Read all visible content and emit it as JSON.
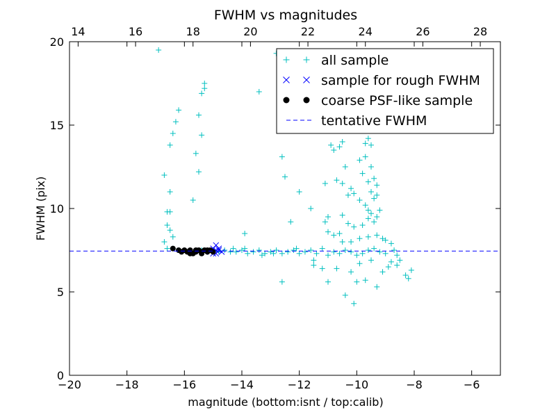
{
  "chart_data": {
    "type": "scatter",
    "title": "FWHM vs magnitudes",
    "xlabel": "magnitude (bottom:isnt / top:calib)",
    "ylabel": "FWHM (pix)",
    "xlim": [
      -20,
      -5
    ],
    "ylim": [
      0,
      20
    ],
    "x_ticks": [
      -20,
      -18,
      -16,
      -14,
      -12,
      -10,
      -8,
      -6
    ],
    "x_tick_labels": [
      "−20",
      "−18",
      "−16",
      "−14",
      "−12",
      "−10",
      "−8",
      "−6"
    ],
    "y_ticks": [
      0,
      5,
      10,
      15,
      20
    ],
    "y_tick_labels": [
      "0",
      "5",
      "10",
      "15",
      "20"
    ],
    "top_axis": {
      "offset": 33.7,
      "ticks": [
        14,
        16,
        18,
        20,
        22,
        24,
        26,
        28
      ],
      "tick_labels": [
        "14",
        "16",
        "18",
        "20",
        "22",
        "24",
        "26",
        "28"
      ]
    },
    "legend_position": "upper-right",
    "series": [
      {
        "name": "all sample",
        "marker": "+",
        "color": "#00bfbf",
        "points": [
          [
            -16.9,
            19.5
          ],
          [
            -16.2,
            15.9
          ],
          [
            -16.3,
            15.2
          ],
          [
            -16.4,
            14.5
          ],
          [
            -16.5,
            13.8
          ],
          [
            -15.3,
            17.5
          ],
          [
            -15.3,
            17.2
          ],
          [
            -15.4,
            16.9
          ],
          [
            -15.5,
            15.6
          ],
          [
            -15.4,
            14.4
          ],
          [
            -15.6,
            13.3
          ],
          [
            -15.5,
            12.2
          ],
          [
            -16.7,
            12.0
          ],
          [
            -16.5,
            11.0
          ],
          [
            -15.7,
            10.5
          ],
          [
            -16.6,
            9.8
          ],
          [
            -16.5,
            9.8
          ],
          [
            -16.6,
            9.0
          ],
          [
            -16.5,
            8.7
          ],
          [
            -16.4,
            8.3
          ],
          [
            -16.7,
            8.0
          ],
          [
            -13.4,
            17.0
          ],
          [
            -12.8,
            19.3
          ],
          [
            -12.6,
            13.1
          ],
          [
            -12.5,
            11.9
          ],
          [
            -12.3,
            9.2
          ],
          [
            -12.0,
            11.0
          ],
          [
            -11.6,
            10.0
          ],
          [
            -11.1,
            11.5
          ],
          [
            -13.9,
            8.5
          ],
          [
            -12.6,
            5.6
          ],
          [
            -10.9,
            13.8
          ],
          [
            -10.8,
            13.5
          ],
          [
            -10.5,
            14.0
          ],
          [
            -10.6,
            13.7
          ],
          [
            -10.4,
            12.5
          ],
          [
            -10.2,
            11.2
          ],
          [
            -10.7,
            11.7
          ],
          [
            -10.5,
            11.5
          ],
          [
            -10.3,
            10.8
          ],
          [
            -9.9,
            10.5
          ],
          [
            -10.1,
            10.9
          ],
          [
            -9.7,
            13.9
          ],
          [
            -9.6,
            14.2
          ],
          [
            -9.5,
            13.8
          ],
          [
            -9.7,
            13.1
          ],
          [
            -9.9,
            12.9
          ],
          [
            -9.5,
            12.5
          ],
          [
            -9.8,
            12.1
          ],
          [
            -9.4,
            11.8
          ],
          [
            -9.6,
            11.6
          ],
          [
            -9.3,
            11.4
          ],
          [
            -9.5,
            11.0
          ],
          [
            -9.3,
            10.8
          ],
          [
            -9.4,
            10.6
          ],
          [
            -9.7,
            10.2
          ],
          [
            -9.6,
            9.9
          ],
          [
            -9.5,
            9.7
          ],
          [
            -9.2,
            9.9
          ],
          [
            -9.3,
            9.5
          ],
          [
            -9.6,
            9.4
          ],
          [
            -9.4,
            9.2
          ],
          [
            -9.8,
            9.0
          ],
          [
            -10.1,
            8.9
          ],
          [
            -10.5,
            9.6
          ],
          [
            -10.3,
            9.1
          ],
          [
            -11.0,
            9.5
          ],
          [
            -11.1,
            9.2
          ],
          [
            -11.0,
            8.6
          ],
          [
            -10.8,
            8.4
          ],
          [
            -10.6,
            8.5
          ],
          [
            -10.5,
            8.0
          ],
          [
            -10.2,
            8.0
          ],
          [
            -9.9,
            8.2
          ],
          [
            -9.6,
            8.3
          ],
          [
            -9.3,
            8.4
          ],
          [
            -9.1,
            8.2
          ],
          [
            -9.0,
            8.1
          ],
          [
            -8.8,
            7.9
          ],
          [
            -8.7,
            7.5
          ],
          [
            -8.6,
            7.2
          ],
          [
            -8.5,
            6.9
          ],
          [
            -8.8,
            6.8
          ],
          [
            -8.9,
            6.5
          ],
          [
            -9.1,
            6.2
          ],
          [
            -8.6,
            6.6
          ],
          [
            -8.3,
            6.0
          ],
          [
            -8.2,
            5.8
          ],
          [
            -8.1,
            6.3
          ],
          [
            -9.3,
            5.3
          ],
          [
            -9.7,
            5.7
          ],
          [
            -10.0,
            5.6
          ],
          [
            -10.2,
            6.2
          ],
          [
            -10.4,
            4.8
          ],
          [
            -10.1,
            4.3
          ],
          [
            -11.0,
            5.6
          ],
          [
            -11.2,
            6.4
          ],
          [
            -11.5,
            6.9
          ],
          [
            -11.6,
            7.5
          ],
          [
            -11.4,
            7.3
          ],
          [
            -11.2,
            7.6
          ],
          [
            -11.0,
            7.2
          ],
          [
            -10.8,
            7.4
          ],
          [
            -10.6,
            7.3
          ],
          [
            -10.4,
            7.5
          ],
          [
            -10.2,
            7.4
          ],
          [
            -10.0,
            7.2
          ],
          [
            -9.8,
            7.3
          ],
          [
            -9.6,
            7.5
          ],
          [
            -9.4,
            7.6
          ],
          [
            -9.2,
            7.4
          ],
          [
            -9.0,
            7.3
          ],
          [
            -11.8,
            7.4
          ],
          [
            -12.0,
            7.3
          ],
          [
            -12.2,
            7.5
          ],
          [
            -12.4,
            7.4
          ],
          [
            -12.6,
            7.3
          ],
          [
            -12.8,
            7.5
          ],
          [
            -13.0,
            7.4
          ],
          [
            -13.2,
            7.3
          ],
          [
            -13.4,
            7.5
          ],
          [
            -13.6,
            7.4
          ],
          [
            -13.8,
            7.3
          ],
          [
            -14.0,
            7.5
          ],
          [
            -14.2,
            7.4
          ],
          [
            -14.4,
            7.4
          ],
          [
            -14.6,
            7.5
          ],
          [
            -14.8,
            7.4
          ],
          [
            -15.0,
            7.5
          ],
          [
            -15.2,
            7.4
          ],
          [
            -15.4,
            7.5
          ],
          [
            -15.6,
            7.5
          ],
          [
            -15.8,
            7.4
          ],
          [
            -16.0,
            7.5
          ],
          [
            -16.2,
            7.5
          ],
          [
            -16.4,
            7.6
          ],
          [
            -16.6,
            7.6
          ],
          [
            -13.3,
            7.2
          ],
          [
            -13.9,
            7.6
          ],
          [
            -12.1,
            7.6
          ],
          [
            -12.9,
            7.3
          ],
          [
            -14.3,
            7.6
          ],
          [
            -11.5,
            6.6
          ],
          [
            -10.7,
            6.4
          ],
          [
            -9.9,
            6.7
          ],
          [
            -9.5,
            6.9
          ]
        ]
      },
      {
        "name": "sample for rough FWHM",
        "marker": "x",
        "color": "#0000ff",
        "points": [
          [
            -14.9,
            7.8
          ],
          [
            -14.8,
            7.5
          ],
          [
            -14.9,
            7.3
          ],
          [
            -15.0,
            7.6
          ],
          [
            -14.7,
            7.4
          ],
          [
            -15.1,
            7.4
          ],
          [
            -14.8,
            7.6
          ],
          [
            -15.0,
            7.3
          ],
          [
            -14.9,
            7.5
          ]
        ]
      },
      {
        "name": "coarse PSF-like sample",
        "marker": "o",
        "color": "#000000",
        "points": [
          [
            -16.4,
            7.6
          ],
          [
            -16.2,
            7.5
          ],
          [
            -16.1,
            7.4
          ],
          [
            -16.0,
            7.5
          ],
          [
            -15.9,
            7.4
          ],
          [
            -15.8,
            7.5
          ],
          [
            -15.7,
            7.3
          ],
          [
            -15.6,
            7.4
          ],
          [
            -15.5,
            7.5
          ],
          [
            -15.4,
            7.4
          ],
          [
            -15.3,
            7.5
          ],
          [
            -15.2,
            7.4
          ],
          [
            -15.1,
            7.5
          ],
          [
            -15.0,
            7.4
          ],
          [
            -15.8,
            7.3
          ],
          [
            -15.6,
            7.5
          ],
          [
            -15.4,
            7.3
          ],
          [
            -15.2,
            7.5
          ]
        ]
      },
      {
        "name": "tentative FWHM",
        "marker": "dashed-line",
        "color": "#0000ff",
        "y": 7.45
      }
    ]
  }
}
